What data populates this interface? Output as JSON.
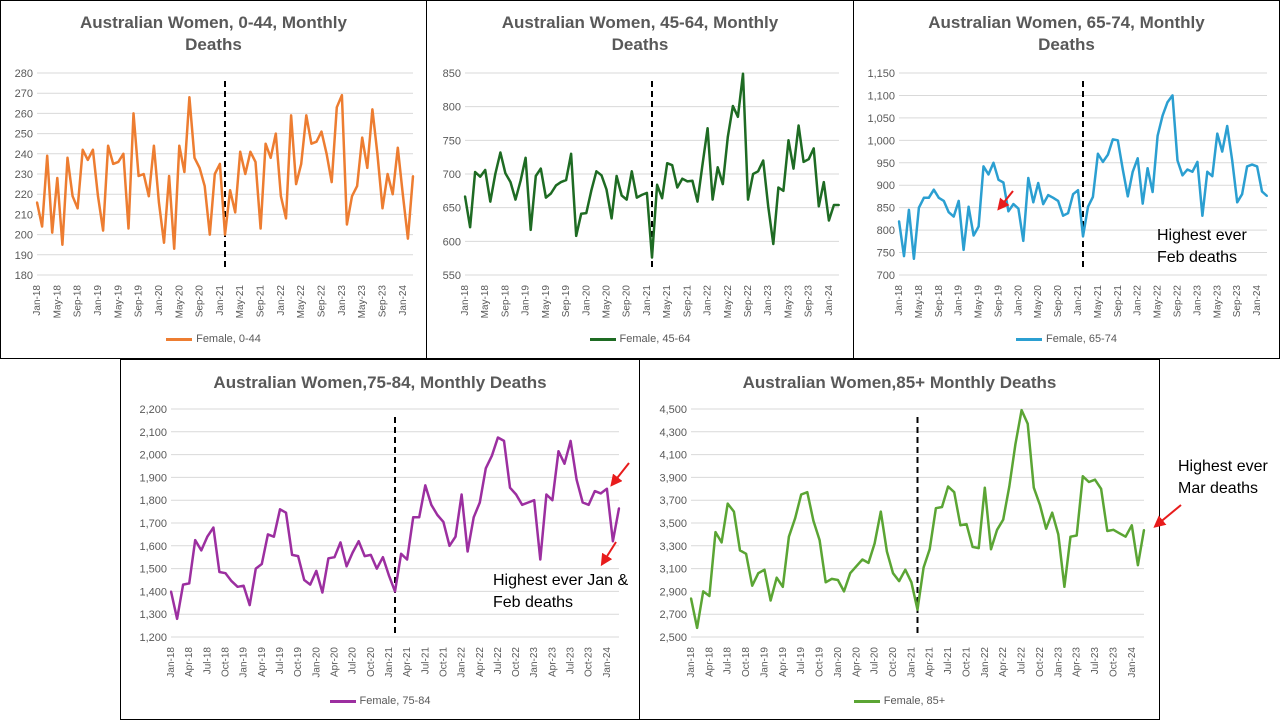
{
  "chart_data": [
    {
      "type": "line",
      "title": "Australian Women, 0-44, Monthly Deaths",
      "legend_position": "bottom",
      "color": "#ED7D31",
      "ylim": [
        180,
        280
      ],
      "y_ticks": [
        180,
        190,
        200,
        210,
        220,
        230,
        240,
        250,
        260,
        270,
        280
      ],
      "y_tick_labels": [
        "180",
        "190",
        "200",
        "210",
        "220",
        "230",
        "240",
        "250",
        "260",
        "270",
        "280"
      ],
      "x_tick_labels": [
        "Jan-18",
        "May-18",
        "Sep-18",
        "Jan-19",
        "May-19",
        "Sep-19",
        "Jan-20",
        "May-20",
        "Sep-20",
        "Jan-21",
        "May-21",
        "Sep-21",
        "Jan-22",
        "May-22",
        "Sep-22",
        "Jan-23",
        "May-23",
        "Sep-23",
        "Jan-24"
      ],
      "x_tick_step": 4,
      "marker_index": 37,
      "series": [
        {
          "name": "Female, 0-44",
          "values": [
            216,
            204,
            239,
            201,
            228,
            195,
            238,
            219,
            213,
            242,
            237,
            242,
            219,
            202,
            244,
            235,
            236,
            240,
            203,
            260,
            229,
            230,
            219,
            244,
            216,
            196,
            229,
            193,
            244,
            231,
            268,
            238,
            233,
            224,
            200,
            230,
            235,
            200,
            222,
            211,
            241,
            230,
            241,
            236,
            203,
            245,
            238,
            250,
            219,
            208,
            259,
            225,
            235,
            259,
            245,
            246,
            251,
            240,
            226,
            263,
            269,
            205,
            219,
            224,
            248,
            233,
            262,
            240,
            213,
            230,
            220,
            243,
            220,
            198,
            229
          ]
        }
      ]
    },
    {
      "type": "line",
      "title": "Australian Women, 45-64, Monthly Deaths",
      "legend_position": "bottom",
      "color": "#1E6B23",
      "ylim": [
        550,
        850
      ],
      "y_ticks": [
        550,
        600,
        650,
        700,
        750,
        800,
        850
      ],
      "y_tick_labels": [
        "550",
        "600",
        "650",
        "700",
        "750",
        "800",
        "850"
      ],
      "x_tick_labels": [
        "Jan-18",
        "May-18",
        "Sep-18",
        "Jan-19",
        "May-19",
        "Sep-19",
        "Jan-20",
        "May-20",
        "Sep-20",
        "Jan-21",
        "May-21",
        "Sep-21",
        "Jan-22",
        "May-22",
        "Sep-22",
        "Jan-23",
        "May-23",
        "Sep-23",
        "Jan-24"
      ],
      "x_tick_step": 4,
      "marker_index": 37,
      "series": [
        {
          "name": "Female, 45-64",
          "values": [
            667,
            621,
            703,
            696,
            706,
            659,
            700,
            732,
            701,
            688,
            662,
            690,
            724,
            617,
            697,
            708,
            665,
            671,
            683,
            688,
            691,
            730,
            608,
            641,
            642,
            676,
            704,
            698,
            677,
            634,
            697,
            668,
            662,
            704,
            665,
            669,
            672,
            576,
            684,
            664,
            716,
            713,
            680,
            693,
            689,
            690,
            659,
            714,
            768,
            662,
            710,
            685,
            755,
            801,
            785,
            849,
            662,
            700,
            704,
            720,
            652,
            596,
            680,
            675,
            750,
            708,
            772,
            718,
            722,
            738,
            652,
            688,
            631,
            654,
            654
          ]
        }
      ]
    },
    {
      "type": "line",
      "title": "Australian Women, 65-74, Monthly Deaths",
      "legend_position": "bottom",
      "color": "#2B9FD1",
      "ylim": [
        700,
        1150
      ],
      "y_ticks": [
        700,
        750,
        800,
        850,
        900,
        950,
        1000,
        1050,
        1100,
        1150
      ],
      "y_tick_labels": [
        "700",
        "750",
        "800",
        "850",
        "900",
        "950",
        "1,000",
        "1,050",
        "1,100",
        "1,150"
      ],
      "x_tick_labels": [
        "Jan-18",
        "May-18",
        "Sep-18",
        "Jan-19",
        "May-19",
        "Sep-19",
        "Jan-20",
        "May-20",
        "Sep-20",
        "Jan-21",
        "May-21",
        "Sep-21",
        "Jan-22",
        "May-22",
        "Sep-22",
        "Jan-23",
        "May-23",
        "Sep-23",
        "Jan-24"
      ],
      "x_tick_step": 4,
      "marker_index": 37,
      "annotation": "Highest ever Feb deaths",
      "series": [
        {
          "name": "Female, 65-74",
          "values": [
            820,
            742,
            845,
            736,
            850,
            872,
            872,
            890,
            872,
            865,
            840,
            830,
            865,
            756,
            852,
            788,
            808,
            942,
            924,
            950,
            912,
            906,
            842,
            858,
            848,
            776,
            916,
            862,
            905,
            858,
            878,
            872,
            865,
            832,
            838,
            880,
            889,
            786,
            852,
            874,
            970,
            952,
            968,
            1002,
            1000,
            935,
            875,
            930,
            960,
            859,
            938,
            885,
            1010,
            1055,
            1085,
            1100,
            955,
            922,
            935,
            930,
            952,
            832,
            930,
            920,
            1015,
            975,
            1032,
            955,
            862,
            880,
            942,
            946,
            942,
            886,
            876
          ]
        }
      ]
    },
    {
      "type": "line",
      "title": "Australian Women,75-84, Monthly Deaths",
      "legend_position": "bottom",
      "color": "#9C2FA0",
      "ylim": [
        1200,
        2200
      ],
      "y_ticks": [
        1200,
        1300,
        1400,
        1500,
        1600,
        1700,
        1800,
        1900,
        2000,
        2100,
        2200
      ],
      "y_tick_labels": [
        "1,200",
        "1,300",
        "1,400",
        "1,500",
        "1,600",
        "1,700",
        "1,800",
        "1,900",
        "2,000",
        "2,100",
        "2,200"
      ],
      "x_tick_labels": [
        "Jan-18",
        "Apr-18",
        "Jul-18",
        "Oct-18",
        "Jan-19",
        "Apr-19",
        "Jul-19",
        "Oct-19",
        "Jan-20",
        "Apr-20",
        "Jul-20",
        "Oct-20",
        "Jan-21",
        "Apr-21",
        "Jul-21",
        "Oct-21",
        "Jan-22",
        "Apr-22",
        "Jul-22",
        "Oct-22",
        "Jan-23",
        "Apr-23",
        "Jul-23",
        "Oct-23",
        "Jan-24"
      ],
      "x_tick_step": 3,
      "marker_index": 37,
      "annotation": "Highest ever Jan & Feb deaths",
      "series": [
        {
          "name": "Female, 75-84",
          "values": [
            1400,
            1280,
            1430,
            1435,
            1625,
            1580,
            1640,
            1680,
            1485,
            1480,
            1445,
            1420,
            1425,
            1340,
            1500,
            1520,
            1650,
            1640,
            1760,
            1745,
            1560,
            1555,
            1450,
            1430,
            1490,
            1395,
            1545,
            1550,
            1615,
            1510,
            1570,
            1620,
            1555,
            1560,
            1500,
            1550,
            1470,
            1400,
            1565,
            1540,
            1725,
            1725,
            1865,
            1780,
            1735,
            1705,
            1600,
            1640,
            1825,
            1575,
            1725,
            1790,
            1940,
            1995,
            2075,
            2060,
            1855,
            1825,
            1780,
            1790,
            1800,
            1540,
            1825,
            1800,
            2015,
            1960,
            2060,
            1890,
            1790,
            1780,
            1840,
            1830,
            1850,
            1620,
            1765
          ]
        }
      ]
    },
    {
      "type": "line",
      "title": "Australian Women,85+ Monthly Deaths",
      "legend_position": "bottom",
      "color": "#5BA534",
      "ylim": [
        2500,
        4500
      ],
      "y_ticks": [
        2500,
        2700,
        2900,
        3100,
        3300,
        3500,
        3700,
        3900,
        4100,
        4300,
        4500
      ],
      "y_tick_labels": [
        "2,500",
        "2,700",
        "2,900",
        "3,100",
        "3,300",
        "3,500",
        "3,700",
        "3,900",
        "4,100",
        "4,300",
        "4,500"
      ],
      "x_tick_labels": [
        "Jan-18",
        "Apr-18",
        "Jul-18",
        "Oct-18",
        "Jan-19",
        "Apr-19",
        "Jul-19",
        "Oct-19",
        "Jan-20",
        "Apr-20",
        "Jul-20",
        "Oct-20",
        "Jan-21",
        "Apr-21",
        "Jul-21",
        "Oct-21",
        "Jan-22",
        "Apr-22",
        "Jul-22",
        "Oct-22",
        "Jan-23",
        "Apr-23",
        "Jul-23",
        "Oct-23",
        "Jan-24"
      ],
      "x_tick_step": 3,
      "marker_index": 37,
      "annotation": "Highest ever Mar deaths",
      "series": [
        {
          "name": "Female, 85+",
          "values": [
            2840,
            2580,
            2900,
            2860,
            3420,
            3330,
            3670,
            3600,
            3260,
            3230,
            2950,
            3060,
            3090,
            2820,
            3020,
            2940,
            3380,
            3540,
            3750,
            3770,
            3520,
            3350,
            2980,
            3010,
            3000,
            2900,
            3060,
            3120,
            3180,
            3150,
            3320,
            3600,
            3250,
            3060,
            2990,
            3090,
            2980,
            2740,
            3110,
            3270,
            3630,
            3640,
            3820,
            3770,
            3480,
            3490,
            3290,
            3280,
            3810,
            3270,
            3440,
            3530,
            3820,
            4190,
            4490,
            4370,
            3810,
            3660,
            3450,
            3590,
            3400,
            2940,
            3380,
            3390,
            3910,
            3860,
            3880,
            3800,
            3430,
            3440,
            3410,
            3380,
            3480,
            3130,
            3440
          ]
        }
      ]
    }
  ]
}
